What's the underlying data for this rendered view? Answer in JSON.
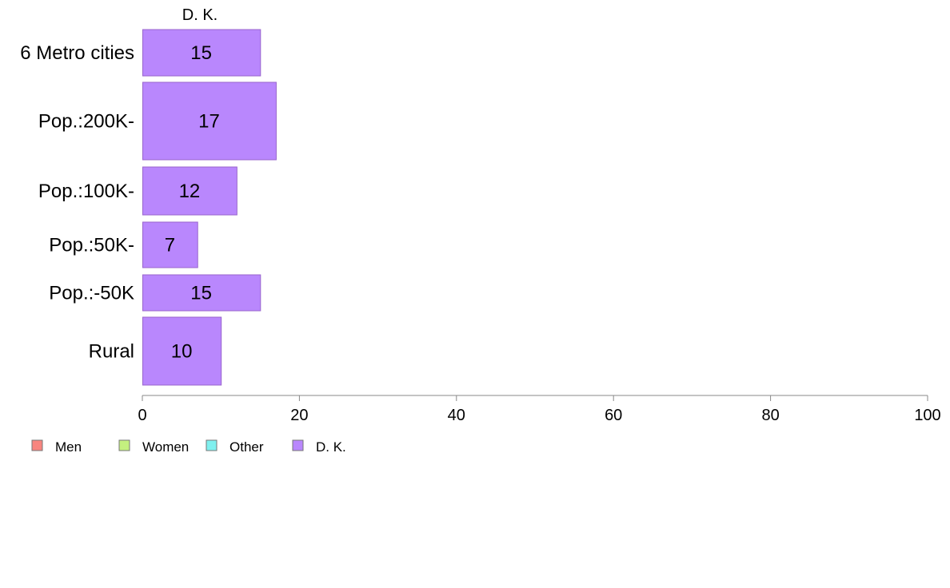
{
  "chart_data": {
    "type": "bar",
    "orientation": "horizontal",
    "variable_width_bars": true,
    "series_title": "D. K.",
    "categories": [
      "6 Metro cities",
      "Pop.:200K-",
      "Pop.:100K-",
      "Pop.:50K-",
      "Pop.:-50K",
      "Rural"
    ],
    "series": [
      {
        "name": "D. K.",
        "values": [
          15,
          17,
          12,
          7,
          15,
          10
        ]
      }
    ],
    "data_labels": [
      "15",
      "17",
      "12",
      "7",
      "15",
      "10"
    ],
    "xlim": [
      0,
      100
    ],
    "xticks": [
      0,
      20,
      40,
      60,
      80,
      100
    ],
    "xtick_labels": [
      "0",
      "20",
      "40",
      "60",
      "80",
      "100"
    ],
    "grid": false,
    "legend": {
      "position": "bottom-left",
      "entries": [
        {
          "label": "Men",
          "color": "#f8857f"
        },
        {
          "label": "Women",
          "color": "#c4f07f"
        },
        {
          "label": "Other",
          "color": "#7ff0ef"
        },
        {
          "label": "D. K.",
          "color": "#b987fd"
        }
      ]
    },
    "colors": {
      "bar_fill": "#b987fd",
      "bar_stroke": "#9966cc",
      "axis": "#888888"
    }
  }
}
